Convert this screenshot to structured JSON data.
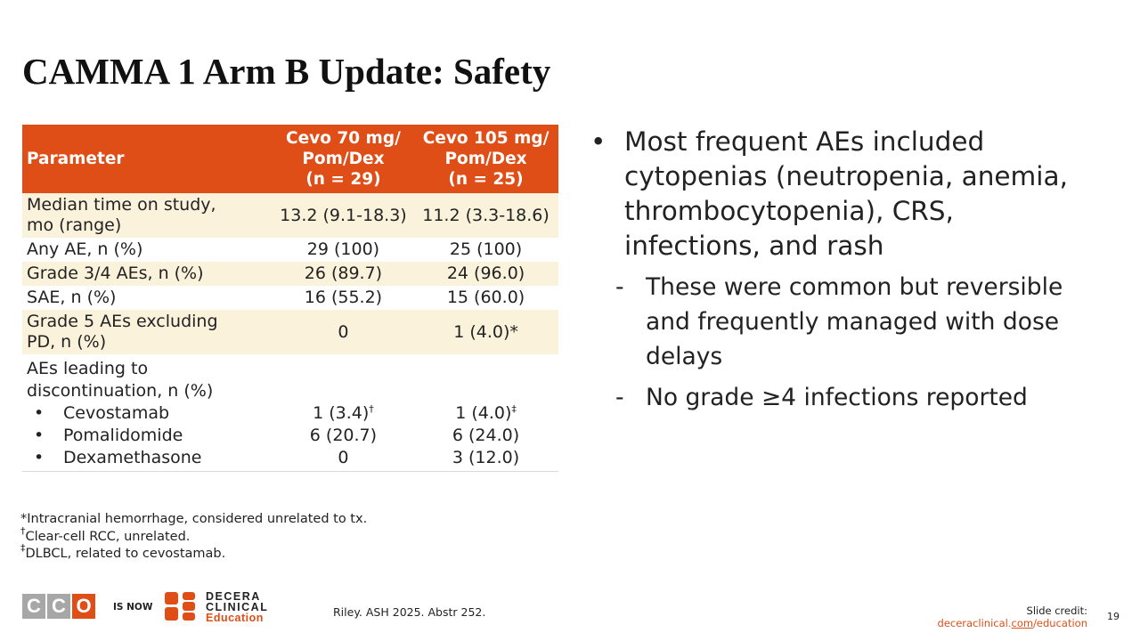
{
  "title": "CAMMA 1 Arm B Update: Safety",
  "table": {
    "headers": {
      "parameter": "Parameter",
      "col1": [
        "Cevo 70 mg/",
        "Pom/Dex",
        "(n = 29)"
      ],
      "col2": [
        "Cevo 105 mg/",
        "Pom/Dex",
        "(n = 25)"
      ]
    },
    "rows": [
      {
        "param": [
          "Median time on study,",
          "mo (range)"
        ],
        "v1": "13.2 (9.1-18.3)",
        "v2": "11.2 (3.3-18.6)"
      },
      {
        "param": [
          "Any AE, n (%)"
        ],
        "v1": "29 (100)",
        "v2": "25 (100)"
      },
      {
        "param": [
          "Grade 3/4 AEs, n (%)"
        ],
        "v1": "26 (89.7)",
        "v2": "24 (96.0)"
      },
      {
        "param": [
          "SAE, n (%)"
        ],
        "v1": "16 (55.2)",
        "v2": "15 (60.0)"
      },
      {
        "param": [
          "Grade 5 AEs excluding",
          "PD, n (%)"
        ],
        "v1": "0",
        "v2": "1 (4.0)*"
      }
    ],
    "discontinuation": {
      "label": [
        "AEs leading to",
        "discontinuation, n (%)"
      ],
      "items": [
        {
          "bullet": "•",
          "name": "Cevostamab",
          "v1": "1 (3.4)",
          "v1_mark": "†",
          "v2": "1 (4.0)",
          "v2_mark": "‡"
        },
        {
          "bullet": "•",
          "name": "Pomalidomide",
          "v1": "6 (20.7)",
          "v1_mark": "",
          "v2": "6 (24.0)",
          "v2_mark": ""
        },
        {
          "bullet": "•",
          "name": "Dexamethasone",
          "v1": "0",
          "v1_mark": "",
          "v2": "3 (12.0)",
          "v2_mark": ""
        }
      ]
    }
  },
  "bullets": {
    "main": {
      "marker": "•",
      "lines": [
        "Most frequent AEs included",
        "cytopenias (neutropenia, anemia,",
        "thrombocytopenia), CRS,",
        "infections, and rash"
      ]
    },
    "subs": [
      {
        "marker": "-",
        "lines": [
          "These were common but reversible",
          "and frequently managed with dose",
          "delays"
        ]
      },
      {
        "marker": "-",
        "lines": [
          "No grade ≥4 infections reported"
        ]
      }
    ]
  },
  "footnotes": [
    {
      "mark": "",
      "text": "*Intracranial hemorrhage, considered unrelated to tx."
    },
    {
      "mark": "†",
      "text": "Clear-cell RCC, unrelated."
    },
    {
      "mark": "‡",
      "text": "DLBCL, related to cevostamab."
    }
  ],
  "footer": {
    "cco_letters": [
      "C",
      "C",
      "O"
    ],
    "is_now": "IS NOW",
    "brand_lines": [
      "DECERA",
      "CLINICAL"
    ],
    "brand_edu": "Education",
    "citation": "Riley. ASH 2025. Abstr 252.",
    "credit_label": "Slide credit:",
    "credit_url_pre": "deceraclinical.",
    "credit_url_link": "com",
    "credit_url_post": "/education",
    "page": "19"
  },
  "colors": {
    "accent": "#e04e17",
    "row_shade": "#fbf2dc",
    "cco_gray": "#a7a7a7"
  }
}
